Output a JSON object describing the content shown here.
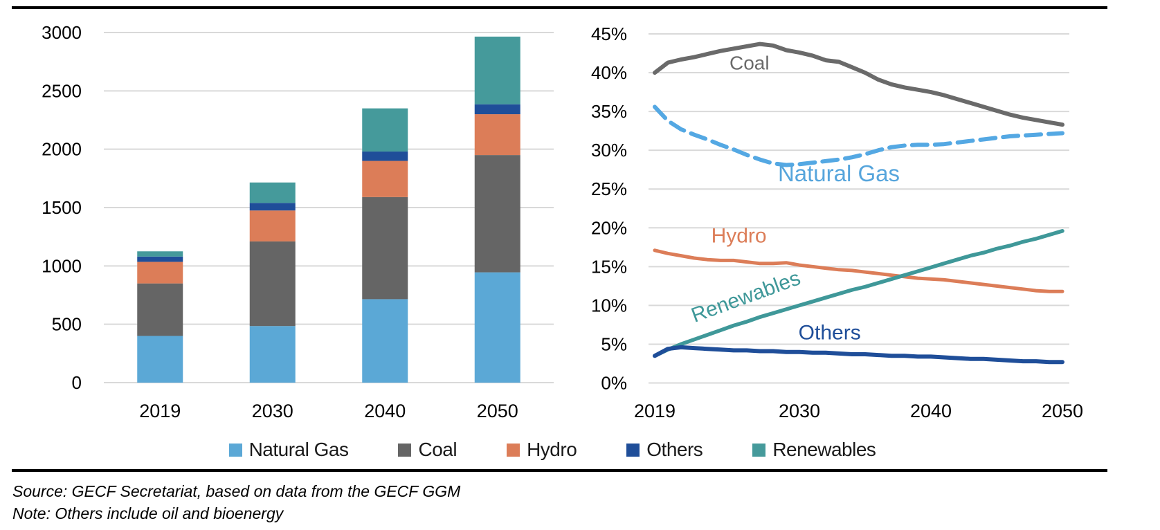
{
  "chart_data": [
    {
      "type": "bar",
      "stacked": true,
      "title": "",
      "xlabel": "",
      "ylabel": "",
      "categories": [
        "2019",
        "2030",
        "2040",
        "2050"
      ],
      "series": [
        {
          "name": "Natural Gas",
          "color": "#5BA8D6",
          "values": [
            400,
            485,
            715,
            945
          ]
        },
        {
          "name": "Coal",
          "color": "#656565",
          "values": [
            450,
            725,
            875,
            1005
          ]
        },
        {
          "name": "Hydro",
          "color": "#DC7D58",
          "values": [
            185,
            265,
            310,
            350
          ]
        },
        {
          "name": "Others",
          "color": "#1F4E99",
          "values": [
            45,
            65,
            80,
            85
          ]
        },
        {
          "name": "Renewables",
          "color": "#459A9B",
          "values": [
            45,
            175,
            370,
            580
          ]
        }
      ],
      "ylim": [
        0,
        3000
      ],
      "ytick_labels": [
        "0",
        "500",
        "1000",
        "1500",
        "2000",
        "2500",
        "3000"
      ],
      "grid": true,
      "legend_position": "bottom"
    },
    {
      "type": "line",
      "title": "",
      "xlabel": "",
      "ylabel": "",
      "x": [
        2019,
        2020,
        2021,
        2022,
        2023,
        2024,
        2025,
        2026,
        2027,
        2028,
        2029,
        2030,
        2031,
        2032,
        2033,
        2034,
        2035,
        2036,
        2037,
        2038,
        2039,
        2040,
        2041,
        2042,
        2043,
        2044,
        2045,
        2046,
        2047,
        2048,
        2049,
        2050
      ],
      "xtick_labels": [
        "2019",
        "2030",
        "2040",
        "2050"
      ],
      "xtick_years": [
        2019,
        2030,
        2040,
        2050
      ],
      "series": [
        {
          "name": "Coal",
          "color": "#6A6A6A",
          "style": "solid",
          "width": 6,
          "values": [
            40.0,
            41.3,
            41.7,
            42.0,
            42.4,
            42.8,
            43.1,
            43.4,
            43.7,
            43.5,
            42.9,
            42.6,
            42.2,
            41.6,
            41.4,
            40.7,
            40.0,
            39.1,
            38.5,
            38.1,
            37.8,
            37.5,
            37.1,
            36.6,
            36.1,
            35.6,
            35.1,
            34.6,
            34.2,
            33.9,
            33.6,
            33.3
          ]
        },
        {
          "name": "Natural Gas",
          "color": "#54A8E3",
          "style": "dashed",
          "width": 6,
          "values": [
            35.6,
            33.8,
            32.7,
            32.0,
            31.4,
            30.7,
            30.1,
            29.4,
            28.8,
            28.3,
            28.1,
            28.2,
            28.4,
            28.6,
            28.8,
            29.1,
            29.5,
            30.0,
            30.4,
            30.6,
            30.7,
            30.7,
            30.8,
            31.0,
            31.2,
            31.4,
            31.6,
            31.8,
            31.9,
            32.0,
            32.1,
            32.2
          ]
        },
        {
          "name": "Hydro",
          "color": "#DC7D58",
          "style": "solid",
          "width": 5,
          "values": [
            17.1,
            16.7,
            16.4,
            16.1,
            15.9,
            15.8,
            15.8,
            15.6,
            15.4,
            15.4,
            15.5,
            15.2,
            15.0,
            14.8,
            14.6,
            14.5,
            14.3,
            14.1,
            13.9,
            13.7,
            13.5,
            13.4,
            13.3,
            13.1,
            12.9,
            12.7,
            12.5,
            12.3,
            12.1,
            11.9,
            11.8,
            11.8
          ]
        },
        {
          "name": "Renewables",
          "color": "#3F9899",
          "style": "solid",
          "width": 5.5,
          "values": [
            3.5,
            4.3,
            5.0,
            5.6,
            6.2,
            6.8,
            7.4,
            7.9,
            8.5,
            9.0,
            9.5,
            10.0,
            10.5,
            11.0,
            11.5,
            12.0,
            12.4,
            12.9,
            13.4,
            13.9,
            14.4,
            14.9,
            15.4,
            15.9,
            16.4,
            16.8,
            17.3,
            17.7,
            18.2,
            18.6,
            19.1,
            19.6
          ]
        },
        {
          "name": "Others",
          "color": "#1F4E99",
          "style": "solid",
          "width": 6,
          "values": [
            3.5,
            4.4,
            4.6,
            4.5,
            4.4,
            4.3,
            4.2,
            4.2,
            4.1,
            4.1,
            4.0,
            4.0,
            3.9,
            3.9,
            3.8,
            3.7,
            3.7,
            3.6,
            3.5,
            3.5,
            3.4,
            3.4,
            3.3,
            3.2,
            3.1,
            3.1,
            3.0,
            2.9,
            2.8,
            2.8,
            2.7,
            2.7
          ]
        }
      ],
      "ylim": [
        0,
        45
      ],
      "ytick_labels": [
        "0%",
        "5%",
        "10%",
        "15%",
        "20%",
        "25%",
        "30%",
        "35%",
        "40%",
        "45%"
      ],
      "grid": true,
      "annotations": [
        {
          "text": "Coal",
          "year": 2026.2,
          "value": 40.4,
          "color": "#6A6A6A",
          "size": 28,
          "rotate": 0
        },
        {
          "text": "Natural Gas",
          "year": 2033.0,
          "value": 26.0,
          "color": "#56A5DC",
          "size": 33,
          "rotate": 0
        },
        {
          "text": "Hydro",
          "year": 2025.4,
          "value": 18.1,
          "color": "#DC7D58",
          "size": 30,
          "rotate": 0
        },
        {
          "text": "Renewables",
          "year": 2026.1,
          "value": 10.3,
          "color": "#3F9899",
          "size": 30,
          "rotate": -20
        },
        {
          "text": "Others",
          "year": 2032.3,
          "value": 5.6,
          "color": "#1F4E99",
          "size": 30,
          "rotate": 0
        }
      ]
    }
  ],
  "legend": {
    "items": [
      {
        "label": "Natural Gas",
        "color": "#5BA8D6"
      },
      {
        "label": "Coal",
        "color": "#656565"
      },
      {
        "label": "Hydro",
        "color": "#DC7D58"
      },
      {
        "label": "Others",
        "color": "#1F4E99"
      },
      {
        "label": "Renewables",
        "color": "#459A9B"
      }
    ]
  },
  "footer": {
    "source": "Source: GECF Secretariat, based on data from the GECF GGM",
    "note": "Note: Others include oil and bioenergy"
  }
}
